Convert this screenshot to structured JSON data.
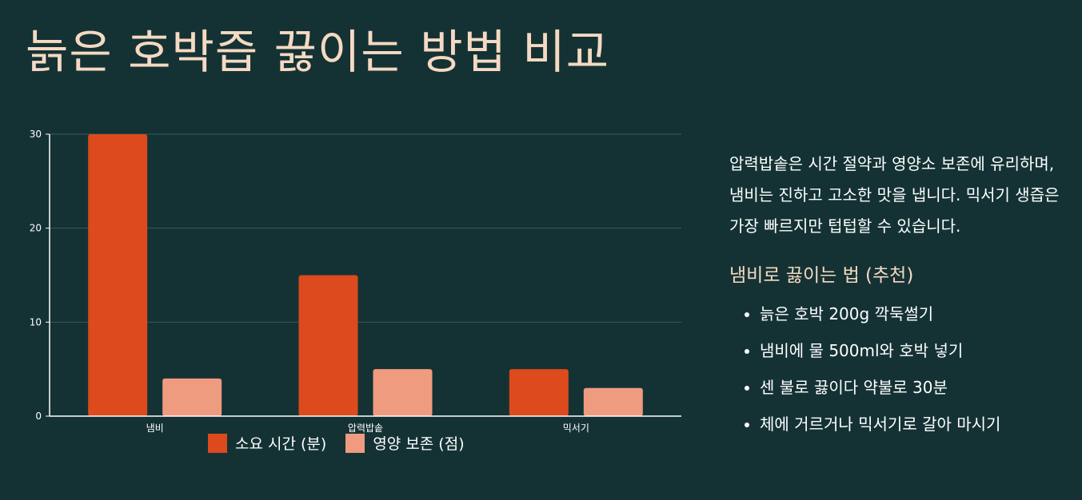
{
  "page": {
    "title": "늙은 호박즙 끓이는 방법 비교"
  },
  "chart_data": {
    "type": "bar",
    "categories": [
      "냄비",
      "압력밥솥",
      "믹서기"
    ],
    "series": [
      {
        "name": "소요 시간 (분)",
        "values": [
          30,
          15,
          5
        ],
        "color": "#dc4a1d"
      },
      {
        "name": "영양 보존 (점)",
        "values": [
          4,
          5,
          3
        ],
        "color": "#ef9b80"
      }
    ],
    "ylim": [
      0,
      30
    ],
    "yticks": [
      0,
      10,
      20,
      30
    ],
    "grid": true,
    "legend_position": "bottom",
    "xlabel": "",
    "ylabel": ""
  },
  "side": {
    "summary": "압력밥솥은 시간 절약과 영양소 보존에 유리하며, 냄비는 진하고 고소한 맛을 냅니다. 믹서기 생즙은 가장 빠르지만 텁텁할 수 있습니다.",
    "subheading": "냄비로 끓이는 법 (추천)",
    "steps": [
      "늙은 호박 200g 깍둑썰기",
      "냄비에 물 500ml와 호박 넣기",
      "센 불로 끓이다 약불로 30분",
      "체에 거르거나 믹서기로 갈아 마시기"
    ]
  },
  "colors": {
    "background": "#143234",
    "accent": "#f5d9c2",
    "grid": "#3a5a58"
  }
}
